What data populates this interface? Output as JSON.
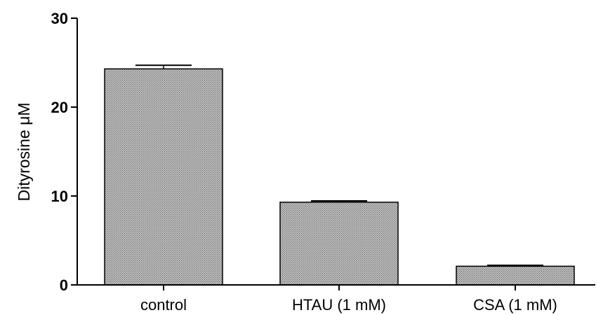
{
  "chart_data": {
    "type": "bar",
    "title": "",
    "xlabel": "",
    "ylabel": "Dityrosine μM",
    "ylim": [
      0,
      30
    ],
    "yticks": [
      0,
      10,
      20,
      30
    ],
    "grid": false,
    "categories": [
      "control",
      "HTAU (1 mM)",
      "CSA (1 mM)"
    ],
    "values": [
      24.3,
      9.3,
      2.1
    ],
    "errors": [
      0.4,
      0.15,
      0.1
    ],
    "bar_fill": "#b0b0b0",
    "bar_pattern": "crosshatch"
  }
}
